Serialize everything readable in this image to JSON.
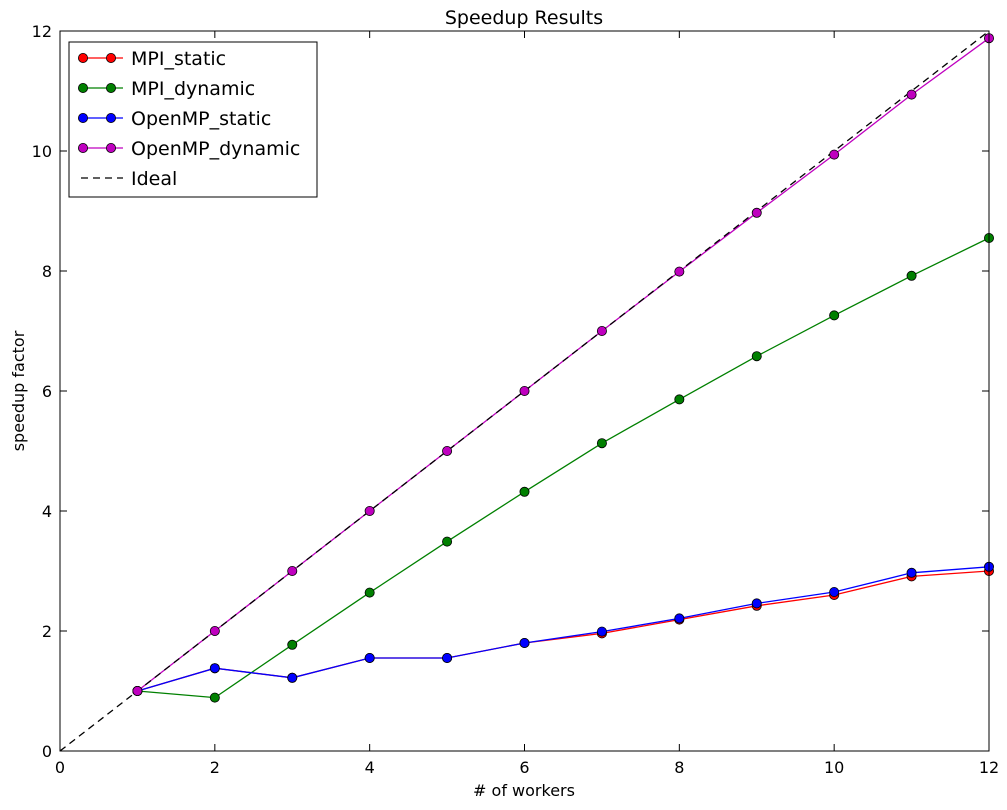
{
  "chart_data": {
    "type": "line",
    "title": "Speedup Results",
    "xlabel": "# of workers",
    "ylabel": "speedup factor",
    "xlim": [
      0,
      12
    ],
    "ylim": [
      0,
      12
    ],
    "xticks": [
      0,
      2,
      4,
      6,
      8,
      10,
      12
    ],
    "yticks": [
      0,
      2,
      4,
      6,
      8,
      10,
      12
    ],
    "grid": false,
    "legend_position": "upper-left",
    "series": [
      {
        "name": "MPI_static",
        "color": "#ff0000",
        "marker": "circle",
        "line_style": "solid",
        "x": [
          1,
          2,
          3,
          4,
          5,
          6,
          7,
          8,
          9,
          10,
          11,
          12
        ],
        "y": [
          1.0,
          1.38,
          1.22,
          1.55,
          1.55,
          1.8,
          1.96,
          2.19,
          2.42,
          2.6,
          2.91,
          3.0
        ]
      },
      {
        "name": "MPI_dynamic",
        "color": "#008000",
        "marker": "circle",
        "line_style": "solid",
        "x": [
          1,
          2,
          3,
          4,
          5,
          6,
          7,
          8,
          9,
          10,
          11,
          12
        ],
        "y": [
          1.0,
          0.89,
          1.77,
          2.64,
          3.49,
          4.32,
          5.13,
          5.86,
          6.58,
          7.26,
          7.92,
          8.55
        ]
      },
      {
        "name": "OpenMP_static",
        "color": "#0000ff",
        "marker": "circle",
        "line_style": "solid",
        "x": [
          1,
          2,
          3,
          4,
          5,
          6,
          7,
          8,
          9,
          10,
          11,
          12
        ],
        "y": [
          1.0,
          1.38,
          1.22,
          1.55,
          1.55,
          1.8,
          1.99,
          2.21,
          2.46,
          2.65,
          2.97,
          3.07
        ]
      },
      {
        "name": "OpenMP_dynamic",
        "color": "#bf00bf",
        "marker": "circle",
        "line_style": "solid",
        "x": [
          1,
          2,
          3,
          4,
          5,
          6,
          7,
          8,
          9,
          10,
          11,
          12
        ],
        "y": [
          1.0,
          2.0,
          3.0,
          4.0,
          5.0,
          6.0,
          7.0,
          7.99,
          8.97,
          9.94,
          10.94,
          11.88
        ]
      },
      {
        "name": "Ideal",
        "color": "#000000",
        "marker": "none",
        "line_style": "dashed",
        "x": [
          0,
          12
        ],
        "y": [
          0,
          12
        ]
      }
    ]
  }
}
